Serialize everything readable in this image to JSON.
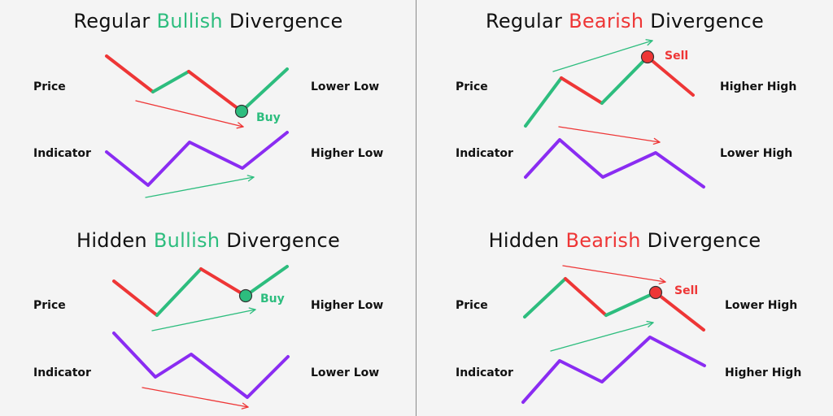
{
  "colors": {
    "bullish": "#2dbd7e",
    "bearish": "#ee3636",
    "indicator": "#8a2cf2",
    "background": "#f4f4f4"
  },
  "panels": [
    {
      "title_a": "Regular ",
      "title_b": "Bullish",
      "title_c": " Divergence",
      "title_color": "bullish",
      "price_label": "Price",
      "indicator_label": "Indicator",
      "price_note": "Lower Low",
      "indicator_note": "Higher Low",
      "signal": "Buy"
    },
    {
      "title_a": "Regular ",
      "title_b": "Bearish",
      "title_c": " Divergence",
      "title_color": "bearish",
      "price_label": "Price",
      "indicator_label": "Indicator",
      "price_note": "Higher High",
      "indicator_note": "Lower High",
      "signal": "Sell"
    },
    {
      "title_a": "Hidden ",
      "title_b": "Bullish",
      "title_c": " Divergence",
      "title_color": "bullish",
      "price_label": "Price",
      "indicator_label": "Indicator",
      "price_note": "Higher Low",
      "indicator_note": "Lower Low",
      "signal": "Buy"
    },
    {
      "title_a": "Hidden ",
      "title_b": "Bearish",
      "title_c": " Divergence",
      "title_color": "bearish",
      "price_label": "Price",
      "indicator_label": "Indicator",
      "price_note": "Lower High",
      "indicator_note": "Higher High",
      "signal": "Sell"
    }
  ]
}
